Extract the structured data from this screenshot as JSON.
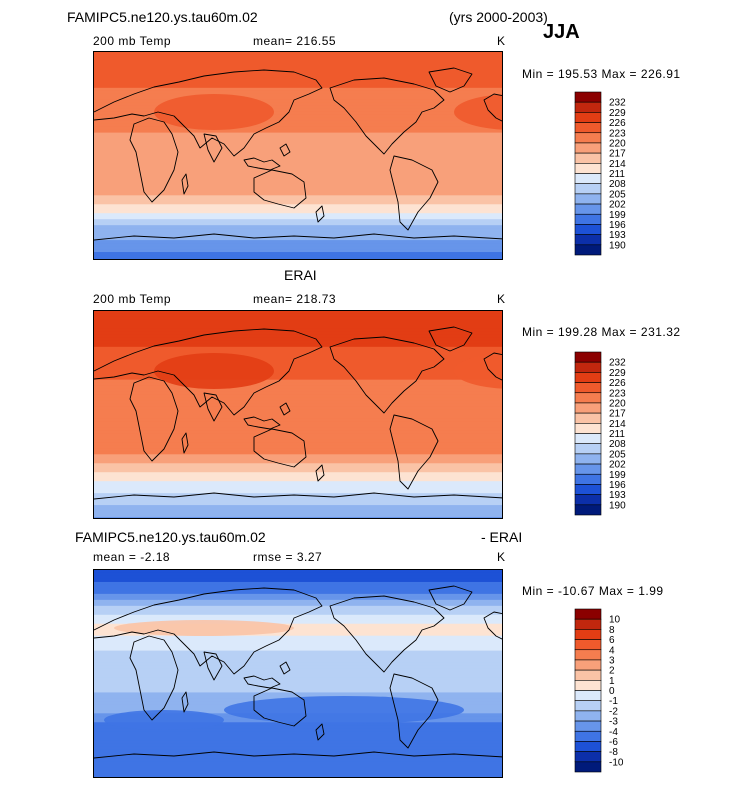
{
  "header": {
    "case_name": "FAMIPC5.ne120.ys.tau60m.02",
    "years": "(yrs 2000-2003)",
    "season": "JJA"
  },
  "panels": [
    {
      "title": "",
      "field": "200 mb Temp",
      "stat_label": "mean= 216.55",
      "rmse_label": "",
      "units": "K",
      "minmax": "Min = 195.53  Max = 226.91"
    },
    {
      "title": "ERAI",
      "field": "200 mb Temp",
      "stat_label": "mean= 218.73",
      "rmse_label": "",
      "units": "K",
      "minmax": "Min = 199.28  Max = 231.32"
    },
    {
      "title": "FAMIPC5.ne120.ys.tau60m.02",
      "title_right": "- ERAI",
      "field": "",
      "stat_label": "mean =   -2.18",
      "rmse_label": "rmse =    3.27",
      "units": "K",
      "minmax": "Min = -10.67  Max =    1.99"
    }
  ],
  "chart_data": [
    {
      "type": "heatmap",
      "title": "200 mb Temp",
      "units": "K",
      "mean": 216.55,
      "min": 195.53,
      "max": 226.91,
      "colorbar_levels": [
        "232",
        "229",
        "226",
        "223",
        "220",
        "217",
        "214",
        "211",
        "208",
        "205",
        "202",
        "199",
        "196",
        "193",
        "190"
      ],
      "colorbar_colors": [
        "#8b0000",
        "#c1270e",
        "#e23d14",
        "#ef5a2c",
        "#f57d4f",
        "#f8a07a",
        "#fac3a6",
        "#fde3d2",
        "#dbe9fb",
        "#b7d0f5",
        "#8fb3ef",
        "#6795ea",
        "#3f74e4",
        "#1d51d6",
        "#0c2fa9",
        "#001a7a"
      ],
      "zonal_profile_lat_to_value": [
        {
          "lat": 90,
          "value": 224
        },
        {
          "lat": 60,
          "value": 223
        },
        {
          "lat": 30,
          "value": 221
        },
        {
          "lat": 0,
          "value": 218
        },
        {
          "lat": -30,
          "value": 218
        },
        {
          "lat": -45,
          "value": 213
        },
        {
          "lat": -60,
          "value": 205
        },
        {
          "lat": -90,
          "value": 197
        }
      ]
    },
    {
      "type": "heatmap",
      "title": "ERAI 200 mb Temp",
      "units": "K",
      "mean": 218.73,
      "min": 199.28,
      "max": 231.32,
      "colorbar_levels": [
        "232",
        "229",
        "226",
        "223",
        "220",
        "217",
        "214",
        "211",
        "208",
        "205",
        "202",
        "199",
        "196",
        "193",
        "190"
      ],
      "colorbar_colors": [
        "#8b0000",
        "#c1270e",
        "#e23d14",
        "#ef5a2c",
        "#f57d4f",
        "#f8a07a",
        "#fac3a6",
        "#fde3d2",
        "#dbe9fb",
        "#b7d0f5",
        "#8fb3ef",
        "#6795ea",
        "#3f74e4",
        "#1d51d6",
        "#0c2fa9",
        "#001a7a"
      ],
      "zonal_profile_lat_to_value": [
        {
          "lat": 90,
          "value": 229
        },
        {
          "lat": 60,
          "value": 226
        },
        {
          "lat": 30,
          "value": 223
        },
        {
          "lat": 0,
          "value": 220
        },
        {
          "lat": -30,
          "value": 221
        },
        {
          "lat": -45,
          "value": 215
        },
        {
          "lat": -60,
          "value": 210
        },
        {
          "lat": -90,
          "value": 201
        }
      ]
    },
    {
      "type": "heatmap",
      "title": "FAMIPC5.ne120.ys.tau60m.02 - ERAI",
      "units": "K",
      "mean": -2.18,
      "rmse": 3.27,
      "min": -10.67,
      "max": 1.99,
      "colorbar_levels": [
        "10",
        "8",
        "6",
        "4",
        "3",
        "2",
        "1",
        "0",
        "-1",
        "-2",
        "-3",
        "-4",
        "-6",
        "-8",
        "-10"
      ],
      "colorbar_colors": [
        "#8b0000",
        "#c1270e",
        "#e23d14",
        "#ef5a2c",
        "#f57d4f",
        "#f8a07a",
        "#fac3a6",
        "#fde3d2",
        "#dbe9fb",
        "#b7d0f5",
        "#8fb3ef",
        "#6795ea",
        "#3f74e4",
        "#1d51d6",
        "#0c2fa9",
        "#001a7a"
      ],
      "zonal_profile_lat_to_value": [
        {
          "lat": 90,
          "value": -8
        },
        {
          "lat": 65,
          "value": -3
        },
        {
          "lat": 40,
          "value": 0.5
        },
        {
          "lat": 20,
          "value": -1
        },
        {
          "lat": 0,
          "value": -1.5
        },
        {
          "lat": -30,
          "value": -2.5
        },
        {
          "lat": -50,
          "value": -5
        },
        {
          "lat": -90,
          "value": -4
        }
      ]
    }
  ]
}
